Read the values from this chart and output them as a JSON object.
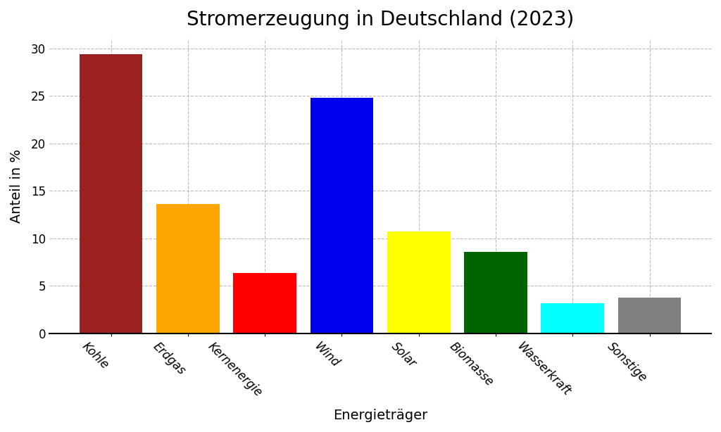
{
  "title": "Stromerzeugung in Deutschland (2023)",
  "categories": [
    "Kohle",
    "Erdgas",
    "Kernenergie",
    "Wind",
    "Solar",
    "Biomasse",
    "Wasserkraft",
    "Sonstige"
  ],
  "values": [
    29.4,
    13.6,
    6.4,
    24.8,
    10.7,
    8.6,
    3.2,
    3.8
  ],
  "colors": [
    "#9B2020",
    "#FFA500",
    "#FF0000",
    "#0000EE",
    "#FFFF00",
    "#006400",
    "#00FFFF",
    "#808080"
  ],
  "xlabel": "Energieträger",
  "ylabel": "Anteil in %",
  "ylim": [
    0,
    31
  ],
  "yticks": [
    0,
    5,
    10,
    15,
    20,
    25,
    30
  ],
  "background_color": "#FFFFFF",
  "grid_color": "#BBBBBB",
  "title_fontsize": 20,
  "label_fontsize": 14,
  "tick_fontsize": 12,
  "bar_width": 0.82
}
